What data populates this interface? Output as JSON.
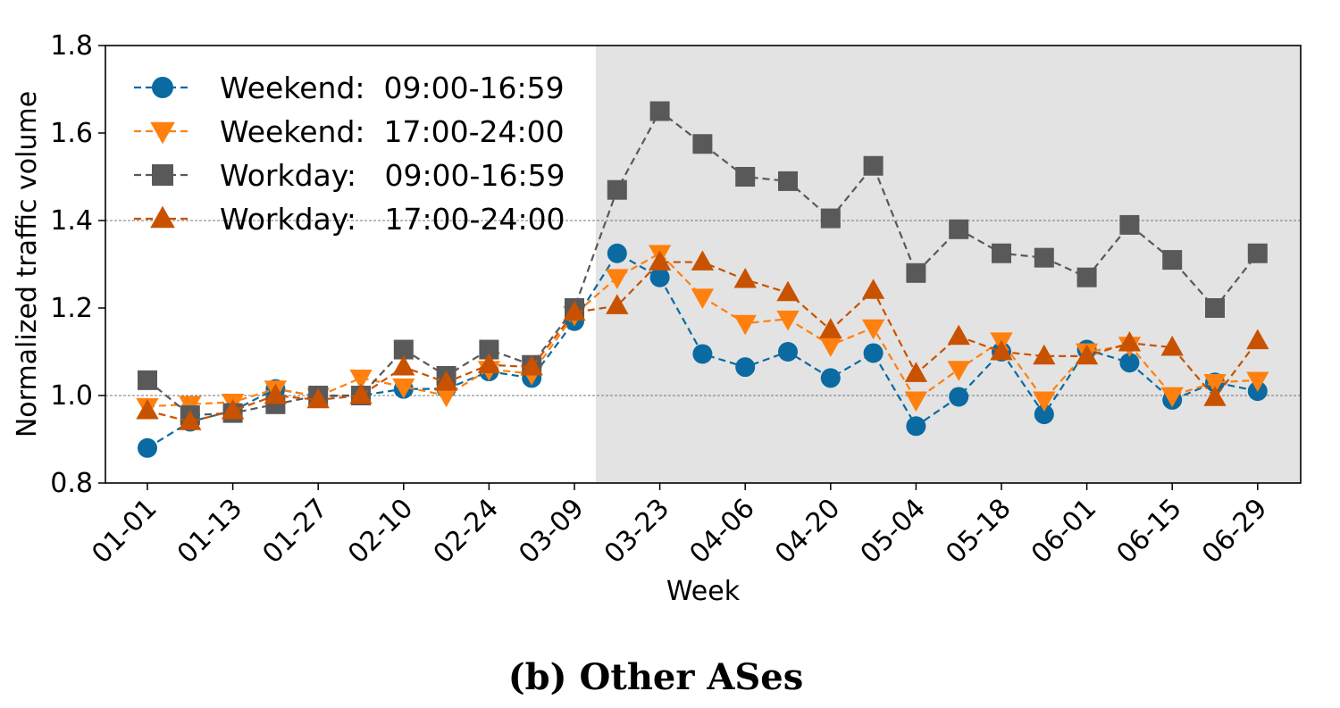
{
  "chart_data": {
    "type": "line",
    "caption": "(b) Other ASes",
    "xlabel": "Week",
    "ylabel": "Normalized traffic volume",
    "ylim": [
      0.8,
      1.8
    ],
    "yticks": [
      "0.8",
      "1.0",
      "1.2",
      "1.4",
      "1.6",
      "1.8"
    ],
    "reference_lines": [
      1.0,
      1.4
    ],
    "shaded_region_start_week": "03-16",
    "grid": false,
    "legend_position": "top-left",
    "x": [
      "01-01",
      "01-06",
      "01-13",
      "01-20",
      "01-27",
      "02-03",
      "02-10",
      "02-17",
      "02-24",
      "03-02",
      "03-09",
      "03-16",
      "03-23",
      "03-30",
      "04-06",
      "04-13",
      "04-20",
      "04-27",
      "05-04",
      "05-11",
      "05-18",
      "05-25",
      "06-01",
      "06-08",
      "06-15",
      "06-22",
      "06-29"
    ],
    "xtick_labels": [
      "01-01",
      "01-13",
      "01-27",
      "02-10",
      "02-24",
      "03-09",
      "03-23",
      "04-06",
      "04-20",
      "05-04",
      "05-18",
      "06-01",
      "06-15",
      "06-29"
    ],
    "series": [
      {
        "name": "Weekend:  09:00-16:59",
        "color": "#0a6aa1",
        "marker": "circle",
        "values": [
          0.88,
          0.94,
          0.965,
          1.015,
          0.998,
          1.0,
          1.015,
          1.015,
          1.055,
          1.04,
          1.17,
          1.325,
          1.27,
          1.095,
          1.065,
          1.1,
          1.04,
          1.097,
          0.93,
          0.997,
          1.1,
          0.957,
          1.105,
          1.075,
          0.99,
          1.03,
          1.01
        ]
      },
      {
        "name": "Weekend:  17:00-24:00",
        "color": "#ff800e",
        "marker": "triangle-down",
        "values": [
          0.975,
          0.98,
          0.985,
          1.015,
          0.998,
          1.04,
          1.02,
          1.0,
          1.06,
          1.05,
          1.185,
          1.27,
          1.325,
          1.225,
          1.165,
          1.175,
          1.115,
          1.155,
          0.99,
          1.06,
          1.125,
          0.99,
          1.1,
          1.115,
          1.0,
          1.03,
          1.035
        ]
      },
      {
        "name": "Workday:   09:00-16:59",
        "color": "#595959",
        "marker": "square",
        "values": [
          1.035,
          0.955,
          0.96,
          0.98,
          1.0,
          1.0,
          1.105,
          1.045,
          1.105,
          1.07,
          1.2,
          1.47,
          1.65,
          1.575,
          1.5,
          1.49,
          1.405,
          1.525,
          1.28,
          1.38,
          1.325,
          1.315,
          1.27,
          1.39,
          1.31,
          1.2,
          1.325
        ]
      },
      {
        "name": "Workday:   17:00-24:00",
        "color": "#c85200",
        "marker": "triangle-up",
        "values": [
          0.965,
          0.94,
          0.965,
          1.0,
          0.99,
          1.0,
          1.065,
          1.03,
          1.07,
          1.065,
          1.19,
          1.205,
          1.305,
          1.305,
          1.265,
          1.235,
          1.15,
          1.24,
          1.05,
          1.135,
          1.1,
          1.09,
          1.09,
          1.12,
          1.11,
          0.995,
          1.125
        ]
      }
    ]
  }
}
